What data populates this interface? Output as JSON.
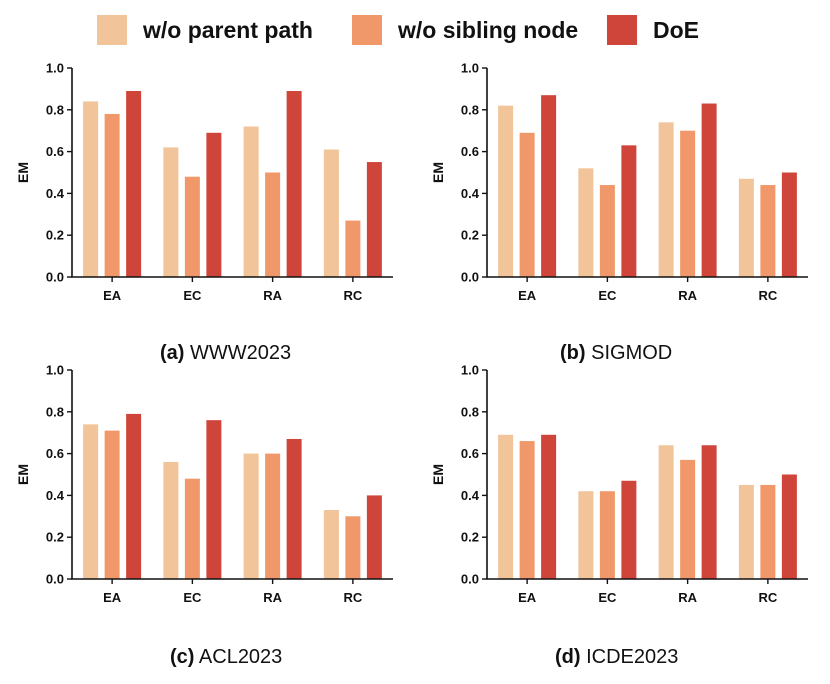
{
  "legend": {
    "items": [
      {
        "label": "w/o parent path",
        "color": "#F1C49A"
      },
      {
        "label": "w/o sibling node",
        "color": "#F0986A"
      },
      {
        "label": "DoE",
        "color": "#D0453A"
      }
    ]
  },
  "chart_data": [
    {
      "type": "bar",
      "title_prefix": "(a)",
      "title": "WWW2023",
      "ylabel": "EM",
      "ylim": [
        0,
        1.0
      ],
      "yticks": [
        "0.0",
        "0.2",
        "0.4",
        "0.6",
        "0.8",
        "1.0"
      ],
      "categories": [
        "EA",
        "EC",
        "RA",
        "RC"
      ],
      "series": [
        {
          "name": "w/o parent path",
          "values": [
            0.84,
            0.62,
            0.72,
            0.61
          ]
        },
        {
          "name": "w/o sibling node",
          "values": [
            0.78,
            0.48,
            0.5,
            0.27
          ]
        },
        {
          "name": "DoE",
          "values": [
            0.89,
            0.69,
            0.89,
            0.55
          ]
        }
      ]
    },
    {
      "type": "bar",
      "title_prefix": "(b)",
      "title": "SIGMOD",
      "ylabel": "EM",
      "ylim": [
        0,
        1.0
      ],
      "yticks": [
        "0.0",
        "0.2",
        "0.4",
        "0.6",
        "0.8",
        "1.0"
      ],
      "categories": [
        "EA",
        "EC",
        "RA",
        "RC"
      ],
      "series": [
        {
          "name": "w/o parent path",
          "values": [
            0.82,
            0.52,
            0.74,
            0.47
          ]
        },
        {
          "name": "w/o sibling node",
          "values": [
            0.69,
            0.44,
            0.7,
            0.44
          ]
        },
        {
          "name": "DoE",
          "values": [
            0.87,
            0.63,
            0.83,
            0.5
          ]
        }
      ]
    },
    {
      "type": "bar",
      "title_prefix": "(c)",
      "title": "ACL2023",
      "ylabel": "EM",
      "ylim": [
        0,
        1.0
      ],
      "yticks": [
        "0.0",
        "0.2",
        "0.4",
        "0.6",
        "0.8",
        "1.0"
      ],
      "categories": [
        "EA",
        "EC",
        "RA",
        "RC"
      ],
      "series": [
        {
          "name": "w/o parent path",
          "values": [
            0.74,
            0.56,
            0.6,
            0.33
          ]
        },
        {
          "name": "w/o sibling node",
          "values": [
            0.71,
            0.48,
            0.6,
            0.3
          ]
        },
        {
          "name": "DoE",
          "values": [
            0.79,
            0.76,
            0.67,
            0.4
          ]
        }
      ]
    },
    {
      "type": "bar",
      "title_prefix": "(d)",
      "title": "ICDE2023",
      "ylabel": "EM",
      "ylim": [
        0,
        1.0
      ],
      "yticks": [
        "0.0",
        "0.2",
        "0.4",
        "0.6",
        "0.8",
        "1.0"
      ],
      "categories": [
        "EA",
        "EC",
        "RA",
        "RC"
      ],
      "series": [
        {
          "name": "w/o parent path",
          "values": [
            0.69,
            0.42,
            0.64,
            0.45
          ]
        },
        {
          "name": "w/o sibling node",
          "values": [
            0.66,
            0.42,
            0.57,
            0.45
          ]
        },
        {
          "name": "DoE",
          "values": [
            0.69,
            0.47,
            0.64,
            0.5
          ]
        }
      ]
    }
  ]
}
